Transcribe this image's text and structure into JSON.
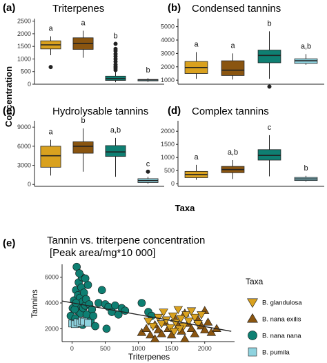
{
  "y_label": "Concentration",
  "x_label": "Taxa",
  "colors": {
    "B. glandulosa": "#d9a11f",
    "B. nana exilis": "#8a5510",
    "B. nana nana": "#0e7f72",
    "B. pumila": "#8fd3df"
  },
  "chart_data": [
    {
      "type": "box",
      "panel": "(a)",
      "title": "Triterpenes",
      "ylim": [
        0,
        2600
      ],
      "yticks": [
        "0",
        "500",
        "1000",
        "1500",
        "2000",
        "2500"
      ],
      "yticks_values": [
        0,
        500,
        1000,
        1500,
        2000,
        2500
      ],
      "series": [
        {
          "name": "B. glandulosa",
          "whisker_low": 1150,
          "q1": 1400,
          "median": 1560,
          "q3": 1720,
          "whisker_high": 1900,
          "outliers": [
            680
          ],
          "sig": "a"
        },
        {
          "name": "B. nana exilis",
          "whisker_low": 1050,
          "q1": 1380,
          "median": 1620,
          "q3": 1840,
          "whisker_high": 2120,
          "outliers": [],
          "sig": "a"
        },
        {
          "name": "B. nana nana",
          "whisker_low": 80,
          "q1": 150,
          "median": 220,
          "q3": 320,
          "whisker_high": 480,
          "outliers": [
            560,
            640,
            700,
            780,
            900,
            1000,
            1100,
            1200,
            1320,
            1400,
            1600
          ],
          "sig": "b"
        },
        {
          "name": "B. pumila",
          "whisker_low": 90,
          "q1": 130,
          "median": 170,
          "q3": 190,
          "whisker_high": 240,
          "outliers": [],
          "sig": "b"
        }
      ]
    },
    {
      "type": "box",
      "panel": "(b)",
      "title": "Condensed tannins",
      "ylim": [
        700,
        5600
      ],
      "yticks": [
        "1000",
        "2000",
        "3000",
        "4000",
        "5000"
      ],
      "yticks_values": [
        1000,
        2000,
        3000,
        4000,
        5000
      ],
      "series": [
        {
          "name": "B. glandulosa",
          "whisker_low": 1100,
          "q1": 1500,
          "median": 1950,
          "q3": 2400,
          "whisker_high": 3100,
          "outliers": [],
          "sig": "a"
        },
        {
          "name": "B. nana exilis",
          "whisker_low": 1050,
          "q1": 1350,
          "median": 1750,
          "q3": 2450,
          "whisker_high": 3000,
          "outliers": [],
          "sig": "a"
        },
        {
          "name": "B. nana nana",
          "whisker_low": 1100,
          "q1": 2300,
          "median": 2850,
          "q3": 3250,
          "whisker_high": 4650,
          "outliers": [
            520
          ],
          "sig": "b"
        },
        {
          "name": "B. pumila",
          "whisker_low": 2150,
          "q1": 2250,
          "median": 2450,
          "q3": 2600,
          "whisker_high": 2950,
          "outliers": [],
          "sig": "a,b"
        }
      ]
    },
    {
      "type": "box",
      "panel": "(c)",
      "title": "Hydrolysable tannins",
      "ylim": [
        -300,
        10000
      ],
      "yticks": [
        "0",
        "3000",
        "6000",
        "9000"
      ],
      "yticks_values": [
        0,
        3000,
        6000,
        9000
      ],
      "series": [
        {
          "name": "B. glandulosa",
          "whisker_low": 1400,
          "q1": 2700,
          "median": 4500,
          "q3": 6000,
          "whisker_high": 7000,
          "outliers": [],
          "sig": "a"
        },
        {
          "name": "B. nana exilis",
          "whisker_low": 2000,
          "q1": 4900,
          "median": 6000,
          "q3": 6700,
          "whisker_high": 8800,
          "outliers": [],
          "sig": "b"
        },
        {
          "name": "B. nana nana",
          "whisker_low": 1200,
          "q1": 4400,
          "median": 5100,
          "q3": 6100,
          "whisker_high": 7300,
          "outliers": [],
          "sig": "a,b"
        },
        {
          "name": "B. pumila",
          "whisker_low": 100,
          "q1": 300,
          "median": 600,
          "q3": 900,
          "whisker_high": 1200,
          "outliers": [
            2000
          ],
          "sig": "c"
        }
      ]
    },
    {
      "type": "box",
      "panel": "(d)",
      "title": "Complex tannins",
      "ylim": [
        -100,
        2400
      ],
      "yticks": [
        "0",
        "500",
        "1000",
        "1500",
        "2000"
      ],
      "yticks_values": [
        0,
        500,
        1000,
        1500,
        2000
      ],
      "series": [
        {
          "name": "B. glandulosa",
          "whisker_low": 150,
          "q1": 230,
          "median": 350,
          "q3": 470,
          "whisker_high": 720,
          "outliers": [],
          "sig": "a"
        },
        {
          "name": "B. nana exilis",
          "whisker_low": 180,
          "q1": 420,
          "median": 540,
          "q3": 660,
          "whisker_high": 900,
          "outliers": [],
          "sig": "a,b"
        },
        {
          "name": "B. nana nana",
          "whisker_low": 280,
          "q1": 900,
          "median": 1080,
          "q3": 1300,
          "whisker_high": 1850,
          "outliers": [],
          "sig": "c"
        },
        {
          "name": "B. pumila",
          "whisker_low": 80,
          "q1": 120,
          "median": 180,
          "q3": 240,
          "whisker_high": 300,
          "outliers": [],
          "sig": "b"
        }
      ]
    },
    {
      "type": "scatter",
      "panel": "(e)",
      "title": "Tannin vs. triterpene concentration",
      "subtitle": "[Peak area/mg*10 000]",
      "xlabel": "Triterpenes",
      "ylabel": "Tannins",
      "xlim": [
        -150,
        2450
      ],
      "ylim": [
        1000,
        7000
      ],
      "xticks": [
        "0",
        "500",
        "1000",
        "1500",
        "2000"
      ],
      "xticks_values": [
        0,
        500,
        1000,
        1500,
        2000
      ],
      "yticks": [
        "2000",
        "4000",
        "6000"
      ],
      "yticks_values": [
        2000,
        4000,
        6000
      ],
      "legend_title": "Taxa",
      "legend_position": "right",
      "trend_line": {
        "x": [
          -150,
          2400
        ],
        "y": [
          4150,
          1800
        ]
      },
      "series": [
        {
          "name": "B. glandulosa",
          "marker": "triangle-down",
          "points": [
            [
              1150,
              2600
            ],
            [
              1220,
              2200
            ],
            [
              1300,
              2900
            ],
            [
              1350,
              2400
            ],
            [
              1380,
              3300
            ],
            [
              1420,
              2700
            ],
            [
              1480,
              2100
            ],
            [
              1520,
              3000
            ],
            [
              1560,
              2500
            ],
            [
              1600,
              3500
            ],
            [
              1640,
              2800
            ],
            [
              1680,
              2200
            ],
            [
              1720,
              3100
            ],
            [
              1760,
              2600
            ],
            [
              1800,
              3400
            ],
            [
              1850,
              2900
            ],
            [
              1900,
              2400
            ],
            [
              1950,
              3100
            ],
            [
              1620,
              2000
            ],
            [
              1540,
              1800
            ]
          ]
        },
        {
          "name": "B. nana exilis",
          "marker": "triangle-up",
          "points": [
            [
              1050,
              1700
            ],
            [
              1120,
              2000
            ],
            [
              1180,
              1500
            ],
            [
              1250,
              2300
            ],
            [
              1300,
              1900
            ],
            [
              1350,
              1600
            ],
            [
              1400,
              2500
            ],
            [
              1450,
              2000
            ],
            [
              1500,
              1500
            ],
            [
              1550,
              2800
            ],
            [
              1600,
              2200
            ],
            [
              1650,
              1800
            ],
            [
              1700,
              3200
            ],
            [
              1750,
              2400
            ],
            [
              1800,
              2000
            ],
            [
              1850,
              1600
            ],
            [
              1900,
              2700
            ],
            [
              1950,
              2200
            ],
            [
              2000,
              1900
            ],
            [
              2050,
              2500
            ],
            [
              2100,
              1700
            ],
            [
              1250,
              1200
            ],
            [
              1700,
              1200
            ],
            [
              2000,
              3400
            ],
            [
              2180,
              2000
            ]
          ]
        },
        {
          "name": "B. nana nana",
          "marker": "circle",
          "points": [
            [
              -20,
              3000
            ],
            [
              10,
              3600
            ],
            [
              30,
              4200
            ],
            [
              50,
              2800
            ],
            [
              60,
              5000
            ],
            [
              70,
              6800
            ],
            [
              80,
              3400
            ],
            [
              90,
              4600
            ],
            [
              100,
              5600
            ],
            [
              110,
              3900
            ],
            [
              120,
              4400
            ],
            [
              130,
              3200
            ],
            [
              140,
              5200
            ],
            [
              150,
              6000
            ],
            [
              160,
              4100
            ],
            [
              170,
              3600
            ],
            [
              180,
              4800
            ],
            [
              190,
              2600
            ],
            [
              200,
              3800
            ],
            [
              210,
              4300
            ],
            [
              220,
              3100
            ],
            [
              240,
              5400
            ],
            [
              260,
              3900
            ],
            [
              280,
              2600
            ],
            [
              300,
              3500
            ],
            [
              350,
              2200
            ],
            [
              400,
              4000
            ],
            [
              450,
              5000
            ],
            [
              500,
              3900
            ],
            [
              550,
              3700
            ],
            [
              600,
              3300
            ],
            [
              650,
              3800
            ],
            [
              700,
              3100
            ],
            [
              750,
              3600
            ],
            [
              800,
              3400
            ],
            [
              1050,
              4000
            ],
            [
              1150,
              3300
            ],
            [
              1200,
              3000
            ],
            [
              90,
              2400
            ],
            [
              130,
              2500
            ],
            [
              160,
              2300
            ],
            [
              200,
              5900
            ],
            [
              110,
              6300
            ],
            [
              320,
              3000
            ],
            [
              520,
              2000
            ],
            [
              40,
              3500
            ],
            [
              60,
              4000
            ]
          ]
        },
        {
          "name": "B. pumila",
          "marker": "square",
          "points": [
            [
              0,
              2400
            ],
            [
              40,
              2350
            ],
            [
              80,
              2500
            ],
            [
              120,
              2450
            ],
            [
              150,
              2600
            ],
            [
              180,
              2550
            ],
            [
              240,
              2450
            ]
          ]
        }
      ]
    }
  ]
}
